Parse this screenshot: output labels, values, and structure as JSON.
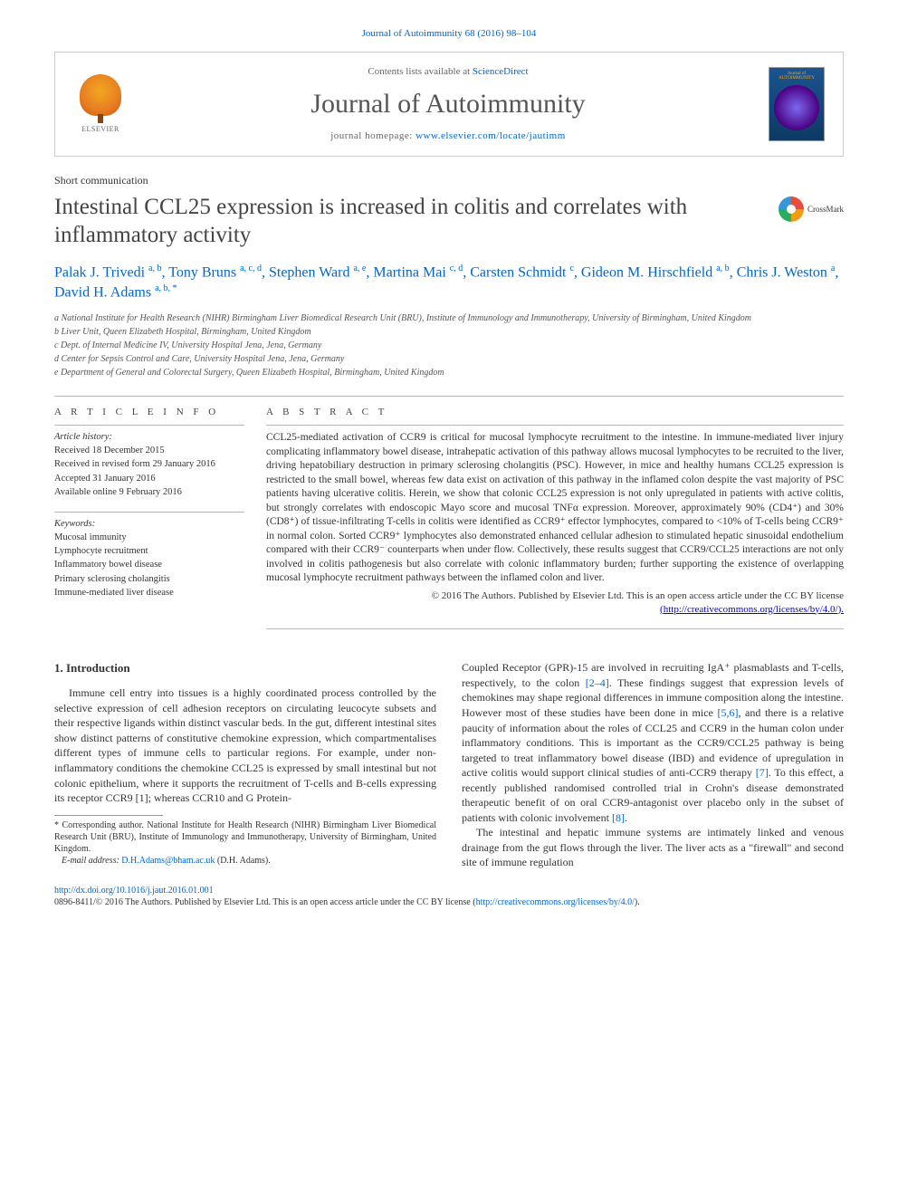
{
  "citation": "Journal of Autoimmunity 68 (2016) 98–104",
  "header": {
    "contents_prefix": "Contents lists available at ",
    "contents_link": "ScienceDirect",
    "journal_name": "Journal of Autoimmunity",
    "homepage_prefix": "journal homepage: ",
    "homepage_url": "www.elsevier.com/locate/jautimm",
    "publisher": "ELSEVIER",
    "cover_title": "Journal of AUTOIMMUNITY"
  },
  "article": {
    "type": "Short communication",
    "title": "Intestinal CCL25 expression is increased in colitis and correlates with inflammatory activity",
    "crossmark": "CrossMark"
  },
  "authors": {
    "a1": {
      "name": "Palak J. Trivedi",
      "aff": "a, b"
    },
    "a2": {
      "name": "Tony Bruns",
      "aff": "a, c, d"
    },
    "a3": {
      "name": "Stephen Ward",
      "aff": "a, e"
    },
    "a4": {
      "name": "Martina Mai",
      "aff": "c, d"
    },
    "a5": {
      "name": "Carsten Schmidt",
      "aff": "c"
    },
    "a6": {
      "name": "Gideon M. Hirschfield",
      "aff": "a, b"
    },
    "a7": {
      "name": "Chris J. Weston",
      "aff": "a"
    },
    "a8": {
      "name": "David H. Adams",
      "aff": "a, b, *"
    }
  },
  "affiliations": {
    "a": "a National Institute for Health Research (NIHR) Birmingham Liver Biomedical Research Unit (BRU), Institute of Immunology and Immunotherapy, University of Birmingham, United Kingdom",
    "b": "b Liver Unit, Queen Elizabeth Hospital, Birmingham, United Kingdom",
    "c": "c Dept. of Internal Medicine IV, University Hospital Jena, Jena, Germany",
    "d": "d Center for Sepsis Control and Care, University Hospital Jena, Jena, Germany",
    "e": "e Department of General and Colorectal Surgery, Queen Elizabeth Hospital, Birmingham, United Kingdom"
  },
  "article_info": {
    "label": "A R T I C L E  I N F O",
    "history_label": "Article history:",
    "received": "Received 18 December 2015",
    "revised": "Received in revised form 29 January 2016",
    "accepted": "Accepted 31 January 2016",
    "online": "Available online 9 February 2016",
    "keywords_label": "Keywords:",
    "keywords": [
      "Mucosal immunity",
      "Lymphocyte recruitment",
      "Inflammatory bowel disease",
      "Primary sclerosing cholangitis",
      "Immune-mediated liver disease"
    ]
  },
  "abstract": {
    "label": "A B S T R A C T",
    "text": "CCL25-mediated activation of CCR9 is critical for mucosal lymphocyte recruitment to the intestine. In immune-mediated liver injury complicating inflammatory bowel disease, intrahepatic activation of this pathway allows mucosal lymphocytes to be recruited to the liver, driving hepatobiliary destruction in primary sclerosing cholangitis (PSC). However, in mice and healthy humans CCL25 expression is restricted to the small bowel, whereas few data exist on activation of this pathway in the inflamed colon despite the vast majority of PSC patients having ulcerative colitis. Herein, we show that colonic CCL25 expression is not only upregulated in patients with active colitis, but strongly correlates with endoscopic Mayo score and mucosal TNFα expression. Moreover, approximately 90% (CD4⁺) and 30% (CD8⁺) of tissue-infiltrating T-cells in colitis were identified as CCR9⁺ effector lymphocytes, compared to <10% of T-cells being CCR9⁺ in normal colon. Sorted CCR9⁺ lymphocytes also demonstrated enhanced cellular adhesion to stimulated hepatic sinusoidal endothelium compared with their CCR9⁻ counterparts when under flow. Collectively, these results suggest that CCR9/CCL25 interactions are not only involved in colitis pathogenesis but also correlate with colonic inflammatory burden; further supporting the existence of overlapping mucosal lymphocyte recruitment pathways between the inflamed colon and liver.",
    "copyright": "© 2016 The Authors. Published by Elsevier Ltd. This is an open access article under the CC BY license",
    "license_url": "(http://creativecommons.org/licenses/by/4.0/)."
  },
  "body": {
    "section_heading": "1. Introduction",
    "p1": "Immune cell entry into tissues is a highly coordinated process controlled by the selective expression of cell adhesion receptors on circulating leucocyte subsets and their respective ligands within distinct vascular beds. In the gut, different intestinal sites show distinct patterns of constitutive chemokine expression, which compartmentalises different types of immune cells to particular regions. For example, under non-inflammatory conditions the chemokine CCL25 is expressed by small intestinal but not colonic epithelium, where it supports the recruitment of T-cells and B-cells expressing its receptor CCR9 [1]; whereas CCR10 and G Protein-",
    "p2a": "Coupled Receptor (GPR)-15 are involved in recruiting IgA⁺ plasmablasts and T-cells, respectively, to the colon ",
    "ref2_4": "[2–4]",
    "p2b": ". These findings suggest that expression levels of chemokines may shape regional differences in immune composition along the intestine. However most of these studies have been done in mice ",
    "ref5_6": "[5,6]",
    "p2c": ", and there is a relative paucity of information about the roles of CCL25 and CCR9 in the human colon under inflammatory conditions. This is important as the CCR9/CCL25 pathway is being targeted to treat inflammatory bowel disease (IBD) and evidence of upregulation in active colitis would support clinical studies of anti-CCR9 therapy ",
    "ref7": "[7]",
    "p2d": ". To this effect, a recently published randomised controlled trial in Crohn's disease demonstrated therapeutic benefit of on oral CCR9-antagonist over placebo only in the subset of patients with colonic involvement ",
    "ref8": "[8]",
    "p2e": ".",
    "p3": "The intestinal and hepatic immune systems are intimately linked and venous drainage from the gut flows through the liver. The liver acts as a \"firewall\" and second site of immune regulation"
  },
  "footnotes": {
    "corresponding": "* Corresponding author. National Institute for Health Research (NIHR) Birmingham Liver Biomedical Research Unit (BRU), Institute of Immunology and Immunotherapy, University of Birmingham, United Kingdom.",
    "email_label": "E-mail address: ",
    "email": "D.H.Adams@bham.ac.uk",
    "email_suffix": " (D.H. Adams)."
  },
  "bottom": {
    "doi": "http://dx.doi.org/10.1016/j.jaut.2016.01.001",
    "issn_line": "0896-8411/© 2016 The Authors. Published by Elsevier Ltd. This is an open access article under the CC BY license (",
    "license_url": "http://creativecommons.org/licenses/by/4.0/",
    "close": ")."
  },
  "colors": {
    "link": "#0066cc",
    "text": "#333333",
    "heading": "#444444",
    "border": "#cccccc"
  }
}
